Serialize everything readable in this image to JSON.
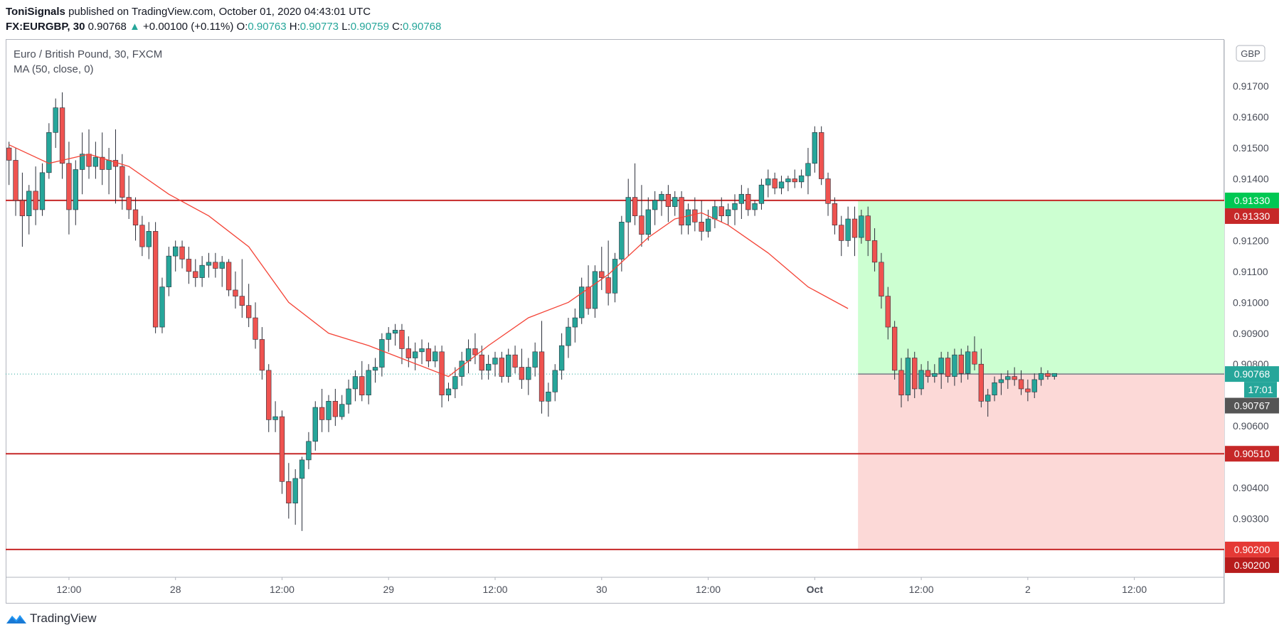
{
  "header": {
    "author": "ToniSignals",
    "published_text": "published on TradingView.com, October 01, 2020 04:43:01 UTC",
    "symbol": "FX:EURGBP, 30",
    "last": "0.90768",
    "change": "+0.00100 (+0.11%)",
    "o_label": "O:",
    "o": "0.90763",
    "h_label": "H:",
    "h": "0.90773",
    "l_label": "L:",
    "l": "0.90759",
    "c_label": "C:",
    "c": "0.90768"
  },
  "legend": {
    "title": "Euro / British Pound, 30, FXCM",
    "indicator": "MA (50, close, 0)"
  },
  "currency_badge": "GBP",
  "countdown": "17:01",
  "footer": {
    "logo_text": "TradingView"
  },
  "colors": {
    "up": "#26a69a",
    "down": "#ef5350",
    "ma": "#f44336",
    "level": "#c62828",
    "target_zone": "#ccffd1",
    "stop_zone": "#fcd9d7",
    "price_tag": "#26a69a"
  },
  "chart_data": {
    "type": "candlestick",
    "title": "Euro / British Pound, 30, FXCM",
    "ylim": [
      0.9011,
      0.9185
    ],
    "y_ticks": [
      "0.91700",
      "0.91600",
      "0.91500",
      "0.91400",
      "0.91200",
      "0.91100",
      "0.91000",
      "0.90900",
      "0.90800",
      "0.90600",
      "0.90400",
      "0.90300"
    ],
    "x_ticks": [
      {
        "label": "12:00",
        "bar": 9
      },
      {
        "label": "28",
        "bar": 25
      },
      {
        "label": "12:00",
        "bar": 41
      },
      {
        "label": "29",
        "bar": 57
      },
      {
        "label": "12:00",
        "bar": 73
      },
      {
        "label": "30",
        "bar": 89
      },
      {
        "label": "12:00",
        "bar": 105
      },
      {
        "label": "Oct",
        "bar": 121
      },
      {
        "label": "12:00",
        "bar": 137
      },
      {
        "label": "2",
        "bar": 153
      },
      {
        "label": "12:00",
        "bar": 169
      }
    ],
    "bars_in_view": 183,
    "candles": [
      {
        "o": 0.915,
        "h": 0.9152,
        "l": 0.9138,
        "c": 0.9146
      },
      {
        "o": 0.9146,
        "h": 0.915,
        "l": 0.9128,
        "c": 0.9133
      },
      {
        "o": 0.9133,
        "h": 0.9142,
        "l": 0.9118,
        "c": 0.9128
      },
      {
        "o": 0.9128,
        "h": 0.9138,
        "l": 0.9122,
        "c": 0.9136
      },
      {
        "o": 0.9136,
        "h": 0.9144,
        "l": 0.9125,
        "c": 0.913
      },
      {
        "o": 0.913,
        "h": 0.9145,
        "l": 0.9128,
        "c": 0.9142
      },
      {
        "o": 0.9142,
        "h": 0.9158,
        "l": 0.914,
        "c": 0.9155
      },
      {
        "o": 0.9155,
        "h": 0.9166,
        "l": 0.915,
        "c": 0.9163
      },
      {
        "o": 0.9163,
        "h": 0.9168,
        "l": 0.914,
        "c": 0.9145
      },
      {
        "o": 0.9145,
        "h": 0.9152,
        "l": 0.9122,
        "c": 0.913
      },
      {
        "o": 0.913,
        "h": 0.9146,
        "l": 0.9125,
        "c": 0.9143
      },
      {
        "o": 0.9143,
        "h": 0.9155,
        "l": 0.9135,
        "c": 0.9148
      },
      {
        "o": 0.9148,
        "h": 0.9156,
        "l": 0.914,
        "c": 0.9144
      },
      {
        "o": 0.9144,
        "h": 0.9152,
        "l": 0.914,
        "c": 0.9147
      },
      {
        "o": 0.9147,
        "h": 0.9155,
        "l": 0.9138,
        "c": 0.9143
      },
      {
        "o": 0.9143,
        "h": 0.915,
        "l": 0.9135,
        "c": 0.9146
      },
      {
        "o": 0.9146,
        "h": 0.9156,
        "l": 0.9132,
        "c": 0.9144
      },
      {
        "o": 0.9144,
        "h": 0.9148,
        "l": 0.913,
        "c": 0.9134
      },
      {
        "o": 0.9134,
        "h": 0.9141,
        "l": 0.9127,
        "c": 0.913
      },
      {
        "o": 0.913,
        "h": 0.9134,
        "l": 0.912,
        "c": 0.9125
      },
      {
        "o": 0.9125,
        "h": 0.9128,
        "l": 0.9115,
        "c": 0.9118
      },
      {
        "o": 0.9118,
        "h": 0.9126,
        "l": 0.9114,
        "c": 0.9123
      },
      {
        "o": 0.9123,
        "h": 0.9126,
        "l": 0.909,
        "c": 0.9092
      },
      {
        "o": 0.9092,
        "h": 0.9108,
        "l": 0.909,
        "c": 0.9105
      },
      {
        "o": 0.9105,
        "h": 0.9118,
        "l": 0.9102,
        "c": 0.9115
      },
      {
        "o": 0.9115,
        "h": 0.912,
        "l": 0.911,
        "c": 0.9118
      },
      {
        "o": 0.9118,
        "h": 0.912,
        "l": 0.9111,
        "c": 0.9114
      },
      {
        "o": 0.9114,
        "h": 0.9118,
        "l": 0.9106,
        "c": 0.911
      },
      {
        "o": 0.911,
        "h": 0.9114,
        "l": 0.9105,
        "c": 0.9108
      },
      {
        "o": 0.9108,
        "h": 0.9115,
        "l": 0.9105,
        "c": 0.9112
      },
      {
        "o": 0.9112,
        "h": 0.9116,
        "l": 0.9108,
        "c": 0.9113
      },
      {
        "o": 0.9113,
        "h": 0.9116,
        "l": 0.9108,
        "c": 0.9111
      },
      {
        "o": 0.9111,
        "h": 0.9115,
        "l": 0.9105,
        "c": 0.9113
      },
      {
        "o": 0.9113,
        "h": 0.9114,
        "l": 0.9102,
        "c": 0.9104
      },
      {
        "o": 0.9104,
        "h": 0.911,
        "l": 0.9098,
        "c": 0.9102
      },
      {
        "o": 0.9102,
        "h": 0.9114,
        "l": 0.9095,
        "c": 0.9099
      },
      {
        "o": 0.9099,
        "h": 0.9106,
        "l": 0.9092,
        "c": 0.9095
      },
      {
        "o": 0.9095,
        "h": 0.91,
        "l": 0.9085,
        "c": 0.9088
      },
      {
        "o": 0.9088,
        "h": 0.9092,
        "l": 0.9075,
        "c": 0.9078
      },
      {
        "o": 0.9078,
        "h": 0.908,
        "l": 0.9058,
        "c": 0.9062
      },
      {
        "o": 0.9062,
        "h": 0.9068,
        "l": 0.9058,
        "c": 0.9063
      },
      {
        "o": 0.9063,
        "h": 0.9065,
        "l": 0.9038,
        "c": 0.9042
      },
      {
        "o": 0.9042,
        "h": 0.9048,
        "l": 0.903,
        "c": 0.9035
      },
      {
        "o": 0.9035,
        "h": 0.9046,
        "l": 0.9028,
        "c": 0.9043
      },
      {
        "o": 0.9043,
        "h": 0.905,
        "l": 0.9026,
        "c": 0.9049
      },
      {
        "o": 0.9049,
        "h": 0.9058,
        "l": 0.9046,
        "c": 0.9055
      },
      {
        "o": 0.9055,
        "h": 0.9068,
        "l": 0.9052,
        "c": 0.9066
      },
      {
        "o": 0.9066,
        "h": 0.9072,
        "l": 0.9058,
        "c": 0.9062
      },
      {
        "o": 0.9062,
        "h": 0.907,
        "l": 0.9058,
        "c": 0.9068
      },
      {
        "o": 0.9068,
        "h": 0.9072,
        "l": 0.906,
        "c": 0.9063
      },
      {
        "o": 0.9063,
        "h": 0.907,
        "l": 0.9062,
        "c": 0.9067
      },
      {
        "o": 0.9067,
        "h": 0.9075,
        "l": 0.9064,
        "c": 0.9072
      },
      {
        "o": 0.9072,
        "h": 0.9078,
        "l": 0.9068,
        "c": 0.9076
      },
      {
        "o": 0.9076,
        "h": 0.9081,
        "l": 0.9068,
        "c": 0.907
      },
      {
        "o": 0.907,
        "h": 0.908,
        "l": 0.9067,
        "c": 0.9078
      },
      {
        "o": 0.9078,
        "h": 0.9082,
        "l": 0.9074,
        "c": 0.9079
      },
      {
        "o": 0.9079,
        "h": 0.909,
        "l": 0.9076,
        "c": 0.9088
      },
      {
        "o": 0.9088,
        "h": 0.9092,
        "l": 0.9084,
        "c": 0.909
      },
      {
        "o": 0.909,
        "h": 0.9093,
        "l": 0.9086,
        "c": 0.9091
      },
      {
        "o": 0.9091,
        "h": 0.9093,
        "l": 0.908,
        "c": 0.9085
      },
      {
        "o": 0.9085,
        "h": 0.9089,
        "l": 0.9079,
        "c": 0.9082
      },
      {
        "o": 0.9082,
        "h": 0.9087,
        "l": 0.9078,
        "c": 0.9084
      },
      {
        "o": 0.9084,
        "h": 0.9088,
        "l": 0.908,
        "c": 0.9085
      },
      {
        "o": 0.9085,
        "h": 0.9087,
        "l": 0.9079,
        "c": 0.9081
      },
      {
        "o": 0.9081,
        "h": 0.9086,
        "l": 0.9079,
        "c": 0.9084
      },
      {
        "o": 0.9084,
        "h": 0.9086,
        "l": 0.9066,
        "c": 0.907
      },
      {
        "o": 0.907,
        "h": 0.9074,
        "l": 0.9068,
        "c": 0.9072
      },
      {
        "o": 0.9072,
        "h": 0.9079,
        "l": 0.9069,
        "c": 0.9076
      },
      {
        "o": 0.9076,
        "h": 0.9084,
        "l": 0.9073,
        "c": 0.9081
      },
      {
        "o": 0.9081,
        "h": 0.9088,
        "l": 0.9077,
        "c": 0.9085
      },
      {
        "o": 0.9085,
        "h": 0.909,
        "l": 0.908,
        "c": 0.9083
      },
      {
        "o": 0.9083,
        "h": 0.9086,
        "l": 0.9075,
        "c": 0.9078
      },
      {
        "o": 0.9078,
        "h": 0.9083,
        "l": 0.9075,
        "c": 0.908
      },
      {
        "o": 0.908,
        "h": 0.9084,
        "l": 0.9076,
        "c": 0.9082
      },
      {
        "o": 0.9082,
        "h": 0.9084,
        "l": 0.9074,
        "c": 0.9076
      },
      {
        "o": 0.9076,
        "h": 0.9085,
        "l": 0.9074,
        "c": 0.9083
      },
      {
        "o": 0.9083,
        "h": 0.9086,
        "l": 0.9077,
        "c": 0.9079
      },
      {
        "o": 0.9079,
        "h": 0.9085,
        "l": 0.9072,
        "c": 0.9075
      },
      {
        "o": 0.9075,
        "h": 0.9082,
        "l": 0.907,
        "c": 0.9079
      },
      {
        "o": 0.9079,
        "h": 0.9087,
        "l": 0.9076,
        "c": 0.9084
      },
      {
        "o": 0.9084,
        "h": 0.9094,
        "l": 0.9064,
        "c": 0.9068
      },
      {
        "o": 0.9068,
        "h": 0.9074,
        "l": 0.9063,
        "c": 0.9071
      },
      {
        "o": 0.9071,
        "h": 0.908,
        "l": 0.9068,
        "c": 0.9078
      },
      {
        "o": 0.9078,
        "h": 0.909,
        "l": 0.9075,
        "c": 0.9086
      },
      {
        "o": 0.9086,
        "h": 0.9095,
        "l": 0.9082,
        "c": 0.9092
      },
      {
        "o": 0.9092,
        "h": 0.9098,
        "l": 0.9087,
        "c": 0.9095
      },
      {
        "o": 0.9095,
        "h": 0.9108,
        "l": 0.9093,
        "c": 0.9105
      },
      {
        "o": 0.9105,
        "h": 0.9112,
        "l": 0.9096,
        "c": 0.9098
      },
      {
        "o": 0.9098,
        "h": 0.9112,
        "l": 0.9095,
        "c": 0.911
      },
      {
        "o": 0.911,
        "h": 0.9118,
        "l": 0.9104,
        "c": 0.9108
      },
      {
        "o": 0.9108,
        "h": 0.912,
        "l": 0.9099,
        "c": 0.9103
      },
      {
        "o": 0.9103,
        "h": 0.9116,
        "l": 0.91,
        "c": 0.9114
      },
      {
        "o": 0.9114,
        "h": 0.9128,
        "l": 0.911,
        "c": 0.9126
      },
      {
        "o": 0.9126,
        "h": 0.914,
        "l": 0.9115,
        "c": 0.9134
      },
      {
        "o": 0.9134,
        "h": 0.9145,
        "l": 0.9125,
        "c": 0.9128
      },
      {
        "o": 0.9128,
        "h": 0.9138,
        "l": 0.9118,
        "c": 0.9122
      },
      {
        "o": 0.9122,
        "h": 0.9134,
        "l": 0.912,
        "c": 0.913
      },
      {
        "o": 0.913,
        "h": 0.9136,
        "l": 0.9125,
        "c": 0.9133
      },
      {
        "o": 0.9133,
        "h": 0.9136,
        "l": 0.9128,
        "c": 0.9135
      },
      {
        "o": 0.9135,
        "h": 0.9138,
        "l": 0.9126,
        "c": 0.9131
      },
      {
        "o": 0.9131,
        "h": 0.9136,
        "l": 0.9128,
        "c": 0.9134
      },
      {
        "o": 0.9134,
        "h": 0.9136,
        "l": 0.9122,
        "c": 0.9125
      },
      {
        "o": 0.9125,
        "h": 0.9132,
        "l": 0.9122,
        "c": 0.913
      },
      {
        "o": 0.913,
        "h": 0.9134,
        "l": 0.9123,
        "c": 0.9126
      },
      {
        "o": 0.9126,
        "h": 0.9133,
        "l": 0.912,
        "c": 0.9123
      },
      {
        "o": 0.9123,
        "h": 0.913,
        "l": 0.9121,
        "c": 0.9127
      },
      {
        "o": 0.9127,
        "h": 0.9133,
        "l": 0.9124,
        "c": 0.9131
      },
      {
        "o": 0.9131,
        "h": 0.9134,
        "l": 0.9126,
        "c": 0.9128
      },
      {
        "o": 0.9128,
        "h": 0.9132,
        "l": 0.9125,
        "c": 0.913
      },
      {
        "o": 0.913,
        "h": 0.9135,
        "l": 0.9125,
        "c": 0.9132
      },
      {
        "o": 0.9132,
        "h": 0.9138,
        "l": 0.9127,
        "c": 0.9135
      },
      {
        "o": 0.9135,
        "h": 0.9137,
        "l": 0.9128,
        "c": 0.913
      },
      {
        "o": 0.913,
        "h": 0.9133,
        "l": 0.9128,
        "c": 0.9132
      },
      {
        "o": 0.9132,
        "h": 0.914,
        "l": 0.913,
        "c": 0.9138
      },
      {
        "o": 0.9138,
        "h": 0.9143,
        "l": 0.9134,
        "c": 0.914
      },
      {
        "o": 0.914,
        "h": 0.9142,
        "l": 0.9135,
        "c": 0.9137
      },
      {
        "o": 0.9137,
        "h": 0.9141,
        "l": 0.9135,
        "c": 0.9139
      },
      {
        "o": 0.9139,
        "h": 0.9141,
        "l": 0.9136,
        "c": 0.914
      },
      {
        "o": 0.914,
        "h": 0.9143,
        "l": 0.9137,
        "c": 0.9139
      },
      {
        "o": 0.9139,
        "h": 0.9143,
        "l": 0.9137,
        "c": 0.9141
      },
      {
        "o": 0.9141,
        "h": 0.915,
        "l": 0.9135,
        "c": 0.9145
      },
      {
        "o": 0.9145,
        "h": 0.9157,
        "l": 0.9142,
        "c": 0.9155
      },
      {
        "o": 0.9155,
        "h": 0.9157,
        "l": 0.9138,
        "c": 0.914
      },
      {
        "o": 0.914,
        "h": 0.9142,
        "l": 0.9128,
        "c": 0.9132
      },
      {
        "o": 0.9132,
        "h": 0.9134,
        "l": 0.9122,
        "c": 0.9125
      },
      {
        "o": 0.9125,
        "h": 0.9128,
        "l": 0.9115,
        "c": 0.912
      },
      {
        "o": 0.912,
        "h": 0.9131,
        "l": 0.9118,
        "c": 0.9127
      },
      {
        "o": 0.9127,
        "h": 0.9131,
        "l": 0.9115,
        "c": 0.9121
      },
      {
        "o": 0.9121,
        "h": 0.913,
        "l": 0.9119,
        "c": 0.9128
      },
      {
        "o": 0.9128,
        "h": 0.9131,
        "l": 0.9115,
        "c": 0.912
      },
      {
        "o": 0.912,
        "h": 0.9124,
        "l": 0.911,
        "c": 0.9113
      },
      {
        "o": 0.9113,
        "h": 0.9116,
        "l": 0.9098,
        "c": 0.9102
      },
      {
        "o": 0.9102,
        "h": 0.9105,
        "l": 0.9088,
        "c": 0.9092
      },
      {
        "o": 0.9092,
        "h": 0.9094,
        "l": 0.9075,
        "c": 0.9078
      },
      {
        "o": 0.9078,
        "h": 0.9082,
        "l": 0.9066,
        "c": 0.907
      },
      {
        "o": 0.907,
        "h": 0.9085,
        "l": 0.9068,
        "c": 0.9082
      },
      {
        "o": 0.9082,
        "h": 0.9084,
        "l": 0.9069,
        "c": 0.9072
      },
      {
        "o": 0.9072,
        "h": 0.908,
        "l": 0.907,
        "c": 0.9078
      },
      {
        "o": 0.9078,
        "h": 0.9081,
        "l": 0.9074,
        "c": 0.9076
      },
      {
        "o": 0.9076,
        "h": 0.908,
        "l": 0.9074,
        "c": 0.9077
      },
      {
        "o": 0.9077,
        "h": 0.9084,
        "l": 0.9072,
        "c": 0.9082
      },
      {
        "o": 0.9082,
        "h": 0.9084,
        "l": 0.9074,
        "c": 0.9076
      },
      {
        "o": 0.9076,
        "h": 0.9085,
        "l": 0.9073,
        "c": 0.9083
      },
      {
        "o": 0.9083,
        "h": 0.9085,
        "l": 0.9074,
        "c": 0.9077
      },
      {
        "o": 0.9077,
        "h": 0.9086,
        "l": 0.9075,
        "c": 0.9084
      },
      {
        "o": 0.9084,
        "h": 0.9089,
        "l": 0.9078,
        "c": 0.908
      },
      {
        "o": 0.908,
        "h": 0.9085,
        "l": 0.9066,
        "c": 0.9068
      },
      {
        "o": 0.9068,
        "h": 0.9072,
        "l": 0.9063,
        "c": 0.907
      },
      {
        "o": 0.907,
        "h": 0.9076,
        "l": 0.9068,
        "c": 0.9074
      },
      {
        "o": 0.9074,
        "h": 0.9077,
        "l": 0.907,
        "c": 0.9075
      },
      {
        "o": 0.9075,
        "h": 0.9078,
        "l": 0.9072,
        "c": 0.9076
      },
      {
        "o": 0.9076,
        "h": 0.9079,
        "l": 0.9073,
        "c": 0.9075
      },
      {
        "o": 0.9075,
        "h": 0.9078,
        "l": 0.907,
        "c": 0.9072
      },
      {
        "o": 0.9072,
        "h": 0.9075,
        "l": 0.9068,
        "c": 0.9071
      },
      {
        "o": 0.9071,
        "h": 0.9077,
        "l": 0.9069,
        "c": 0.9075
      },
      {
        "o": 0.9075,
        "h": 0.9079,
        "l": 0.9073,
        "c": 0.9077
      },
      {
        "o": 0.9077,
        "h": 0.9078,
        "l": 0.9075,
        "c": 0.9076
      },
      {
        "o": 0.9076,
        "h": 0.9077,
        "l": 0.9075,
        "c": 0.9077
      }
    ],
    "ma_50": [
      {
        "bar": 0,
        "v": 0.9151
      },
      {
        "bar": 6,
        "v": 0.9145
      },
      {
        "bar": 12,
        "v": 0.9148
      },
      {
        "bar": 18,
        "v": 0.9144
      },
      {
        "bar": 24,
        "v": 0.9135
      },
      {
        "bar": 30,
        "v": 0.9128
      },
      {
        "bar": 36,
        "v": 0.9118
      },
      {
        "bar": 42,
        "v": 0.91
      },
      {
        "bar": 48,
        "v": 0.909
      },
      {
        "bar": 54,
        "v": 0.9086
      },
      {
        "bar": 60,
        "v": 0.9081
      },
      {
        "bar": 66,
        "v": 0.9076
      },
      {
        "bar": 72,
        "v": 0.9086
      },
      {
        "bar": 78,
        "v": 0.9095
      },
      {
        "bar": 84,
        "v": 0.91
      },
      {
        "bar": 90,
        "v": 0.9109
      },
      {
        "bar": 96,
        "v": 0.9121
      },
      {
        "bar": 100,
        "v": 0.9127
      },
      {
        "bar": 104,
        "v": 0.9129
      },
      {
        "bar": 108,
        "v": 0.9125
      },
      {
        "bar": 114,
        "v": 0.9116
      },
      {
        "bar": 120,
        "v": 0.9105
      },
      {
        "bar": 126,
        "v": 0.9098
      }
    ],
    "horizontal_levels": [
      0.9133,
      0.9051,
      0.902
    ],
    "position": {
      "entry": 0.90768,
      "target": 0.9133,
      "stop": 0.902,
      "start_bar": 128
    },
    "price_labels": [
      {
        "text": "0.91330",
        "value": 0.9133,
        "color": "#00c853"
      },
      {
        "text": "0.91330",
        "value": 0.9133,
        "color": "#c62828",
        "offset": 1
      },
      {
        "text": "0.90768",
        "value": 0.90768,
        "color": "#26a69a"
      },
      {
        "text": "0.90767",
        "value": 0.90767,
        "color": "#555555",
        "offset": 2
      },
      {
        "text": "0.90510",
        "value": 0.9051,
        "color": "#c62828"
      },
      {
        "text": "0.90200",
        "value": 0.902,
        "color": "#e53935"
      },
      {
        "text": "0.90200",
        "value": 0.902,
        "color": "#b71c1c",
        "offset": 1
      }
    ]
  }
}
